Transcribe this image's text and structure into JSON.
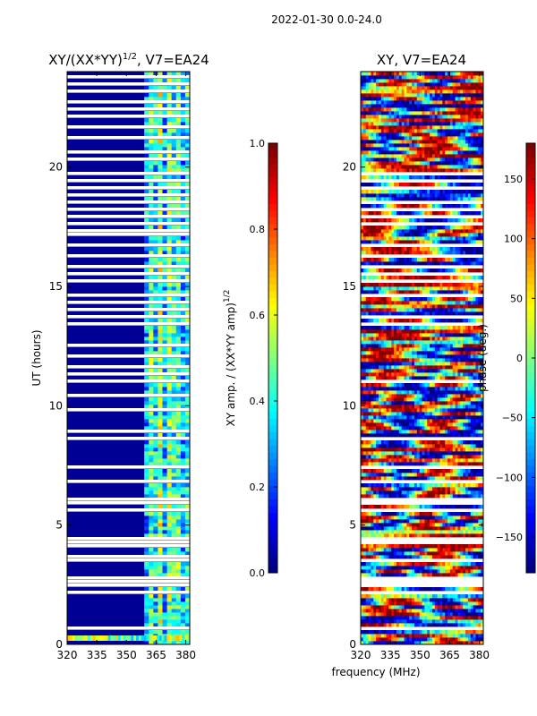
{
  "suptitle": "2022-01-30 0.0-24.0",
  "chart_data": [
    {
      "type": "heatmap",
      "title_main": "XY/(XX*YY)",
      "title_exp": "1/2",
      "title_suffix": ", V7=EA24",
      "xlabel": "",
      "ylabel": "UT (hours)",
      "xlim": [
        320,
        382
      ],
      "ylim": [
        0,
        24
      ],
      "xticks": [
        "320",
        "335",
        "350",
        "365",
        "380"
      ],
      "xtick_values": [
        320,
        335,
        350,
        365,
        380
      ],
      "yticks": [
        "0",
        "5",
        "10",
        "15",
        "20"
      ],
      "ytick_values": [
        0,
        5,
        10,
        15,
        20
      ],
      "colorbar": {
        "label_main": "XY amp. / (XX*YY amp)",
        "label_exp": "1/2",
        "range": [
          0.0,
          1.0
        ],
        "ticks": [
          "0.0",
          "0.2",
          "0.4",
          "0.6",
          "0.8",
          "1.0"
        ],
        "tick_values": [
          0.0,
          0.2,
          0.4,
          0.6,
          0.8,
          1.0
        ],
        "colormap": "jet"
      },
      "low_band_value": 0.02,
      "high_band_start_mhz": 359,
      "high_band_values": [
        0.3,
        0.45,
        0.35,
        0.55,
        0.3,
        0.5,
        0.4,
        0.45,
        0.3,
        0.4
      ],
      "gap_hours": [
        0.55,
        2.1,
        2.35,
        2.5,
        2.7,
        3.5,
        3.6,
        4.0,
        4.2,
        4.4,
        5.6,
        5.8,
        6.0,
        6.7,
        7.4,
        8.5,
        8.9,
        9.8,
        10.3,
        10.9,
        11.2,
        11.5,
        12.0,
        12.4,
        13.4,
        13.6,
        13.9,
        14.2,
        14.6,
        15.1,
        15.5,
        15.8,
        16.2,
        16.6,
        17.1,
        17.3,
        17.6,
        17.8,
        18.2,
        18.5,
        18.8,
        19.1,
        19.4,
        19.7,
        20.2,
        20.6,
        21.1,
        21.6,
        22.1,
        22.4,
        22.7,
        23.1,
        23.4,
        23.7
      ]
    },
    {
      "type": "heatmap",
      "title_main": "XY, V7=EA24",
      "xlabel": "frequency (MHz)",
      "ylabel": "",
      "xlim": [
        320,
        382
      ],
      "ylim": [
        0,
        24
      ],
      "xticks": [
        "320",
        "335",
        "350",
        "365",
        "380"
      ],
      "xtick_values": [
        320,
        335,
        350,
        365,
        380
      ],
      "yticks": [
        "0",
        "5",
        "10",
        "15",
        "20"
      ],
      "ytick_values": [
        0,
        5,
        10,
        15,
        20
      ],
      "colorbar": {
        "label": "phase (deg.)",
        "range": [
          -180,
          180
        ],
        "ticks": [
          "−150",
          "−100",
          "−50",
          "0",
          "50",
          "100",
          "150"
        ],
        "tick_values": [
          -150,
          -100,
          -50,
          0,
          50,
          100,
          150
        ],
        "colormap": "jet"
      },
      "gap_hours": [
        0.55,
        2.1,
        2.35,
        2.5,
        2.7,
        3.5,
        4.2,
        4.4,
        5.6,
        5.8,
        6.0,
        6.7,
        7.4,
        8.5,
        10.9,
        13.4,
        13.6,
        14.6,
        15.1,
        15.5,
        15.8,
        16.2,
        16.6,
        17.6,
        17.8,
        18.2,
        18.5,
        19.1,
        19.4,
        19.7
      ]
    }
  ]
}
